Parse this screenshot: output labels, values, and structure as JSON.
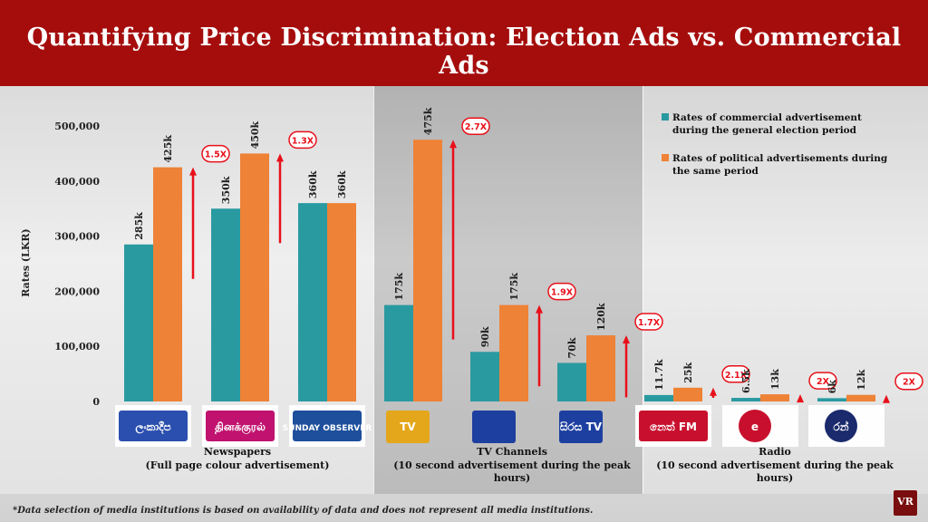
{
  "header": {
    "title": "Quantifying Price Discrimination: Election Ads vs. Commercial Ads"
  },
  "chart_data": {
    "type": "bar",
    "ylabel": "Rates (LKR)",
    "ylim": [
      0,
      500000
    ],
    "yticks": [
      "0",
      "100,000",
      "200,000",
      "300,000",
      "400,000",
      "500,000"
    ],
    "colors": {
      "commercial": "#2a9aa1",
      "political": "#ee8236",
      "arrow": "#e8101a"
    },
    "legend": [
      {
        "name": "Rates of commercial advertisement during the general election period",
        "color": "#2a9aa1"
      },
      {
        "name": "Rates of political advertisements during the same period",
        "color": "#ee8236"
      }
    ],
    "legend_lines": [
      [
        "Rates of commercial advertisement",
        "during the general election period"
      ],
      [
        "Rates of political advertisements during",
        "the same period"
      ]
    ],
    "groups": [
      {
        "category": "Newspapers",
        "sublabel": "(Full page colour advertisement)",
        "items": [
          {
            "logo": "ලංකාදීප",
            "commercial": 285000,
            "political": 425000,
            "commercial_label": "285k",
            "political_label": "425k",
            "ratio": "1.5X"
          },
          {
            "logo": "தினக்குரல்",
            "commercial": 350000,
            "political": 450000,
            "commercial_label": "350k",
            "political_label": "450k",
            "ratio": "1.3X"
          },
          {
            "logo": "SUNDAY OBSERVER",
            "commercial": 360000,
            "political": 360000,
            "commercial_label": "360k",
            "political_label": "360k",
            "ratio": ""
          }
        ]
      },
      {
        "category": "TV Channels",
        "sublabel": "(10 second advertisement during the peak hours)",
        "items": [
          {
            "logo": "TV",
            "commercial": 175000,
            "political": 475000,
            "commercial_label": "175k",
            "political_label": "475k",
            "ratio": "2.7X"
          },
          {
            "logo": "",
            "commercial": 90000,
            "political": 175000,
            "commercial_label": "90k",
            "political_label": "175k",
            "ratio": "1.9X"
          },
          {
            "logo": "සිරස TV",
            "commercial": 70000,
            "political": 120000,
            "commercial_label": "70k",
            "political_label": "120k",
            "ratio": "1.7X"
          }
        ]
      },
      {
        "category": "Radio",
        "sublabel": "(10 second advertisement during the peak hours)",
        "items": [
          {
            "logo": "නෙත් FM",
            "commercial": 11700,
            "political": 25000,
            "commercial_label": "11.7k",
            "political_label": "25k",
            "ratio": "2.1X"
          },
          {
            "logo": "e",
            "commercial": 6500,
            "political": 13000,
            "commercial_label": "6.5k",
            "political_label": "13k",
            "ratio": "2X"
          },
          {
            "logo": "රන්",
            "commercial": 6000,
            "political": 12000,
            "commercial_label": "6k",
            "political_label": "12k",
            "ratio": "2X"
          }
        ]
      }
    ]
  },
  "footnote": "*Data selection of media institutions is based on availability of data and does not represent all media institutions.",
  "brand": {
    "badge": "VR"
  }
}
